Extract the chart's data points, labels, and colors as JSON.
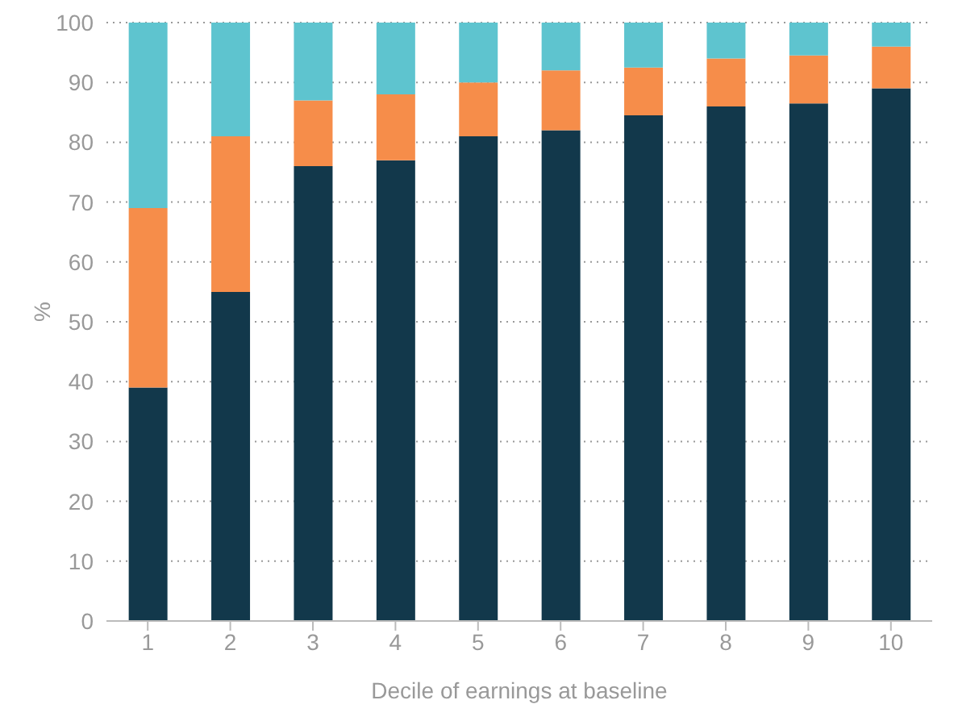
{
  "chart_data": {
    "type": "bar",
    "stacked": true,
    "xlabel": "Decile of earnings at baseline",
    "ylabel": "%",
    "categories": [
      "1",
      "2",
      "3",
      "4",
      "5",
      "6",
      "7",
      "8",
      "9",
      "10"
    ],
    "series": [
      {
        "color": "#12384b",
        "values": [
          39,
          55,
          76,
          77,
          81,
          82,
          84.5,
          86,
          86.5,
          89
        ]
      },
      {
        "color": "#f68d4a",
        "values": [
          30,
          26,
          11,
          11,
          9,
          10,
          8,
          8,
          8,
          7
        ]
      },
      {
        "color": "#5ec4cf",
        "values": [
          31,
          19,
          13,
          12,
          10,
          8,
          7.5,
          6,
          5.5,
          4
        ]
      }
    ],
    "ylim": [
      0,
      100
    ],
    "yticks": [
      0,
      10,
      20,
      30,
      40,
      50,
      60,
      70,
      80,
      90,
      100
    ],
    "grid": "y"
  }
}
